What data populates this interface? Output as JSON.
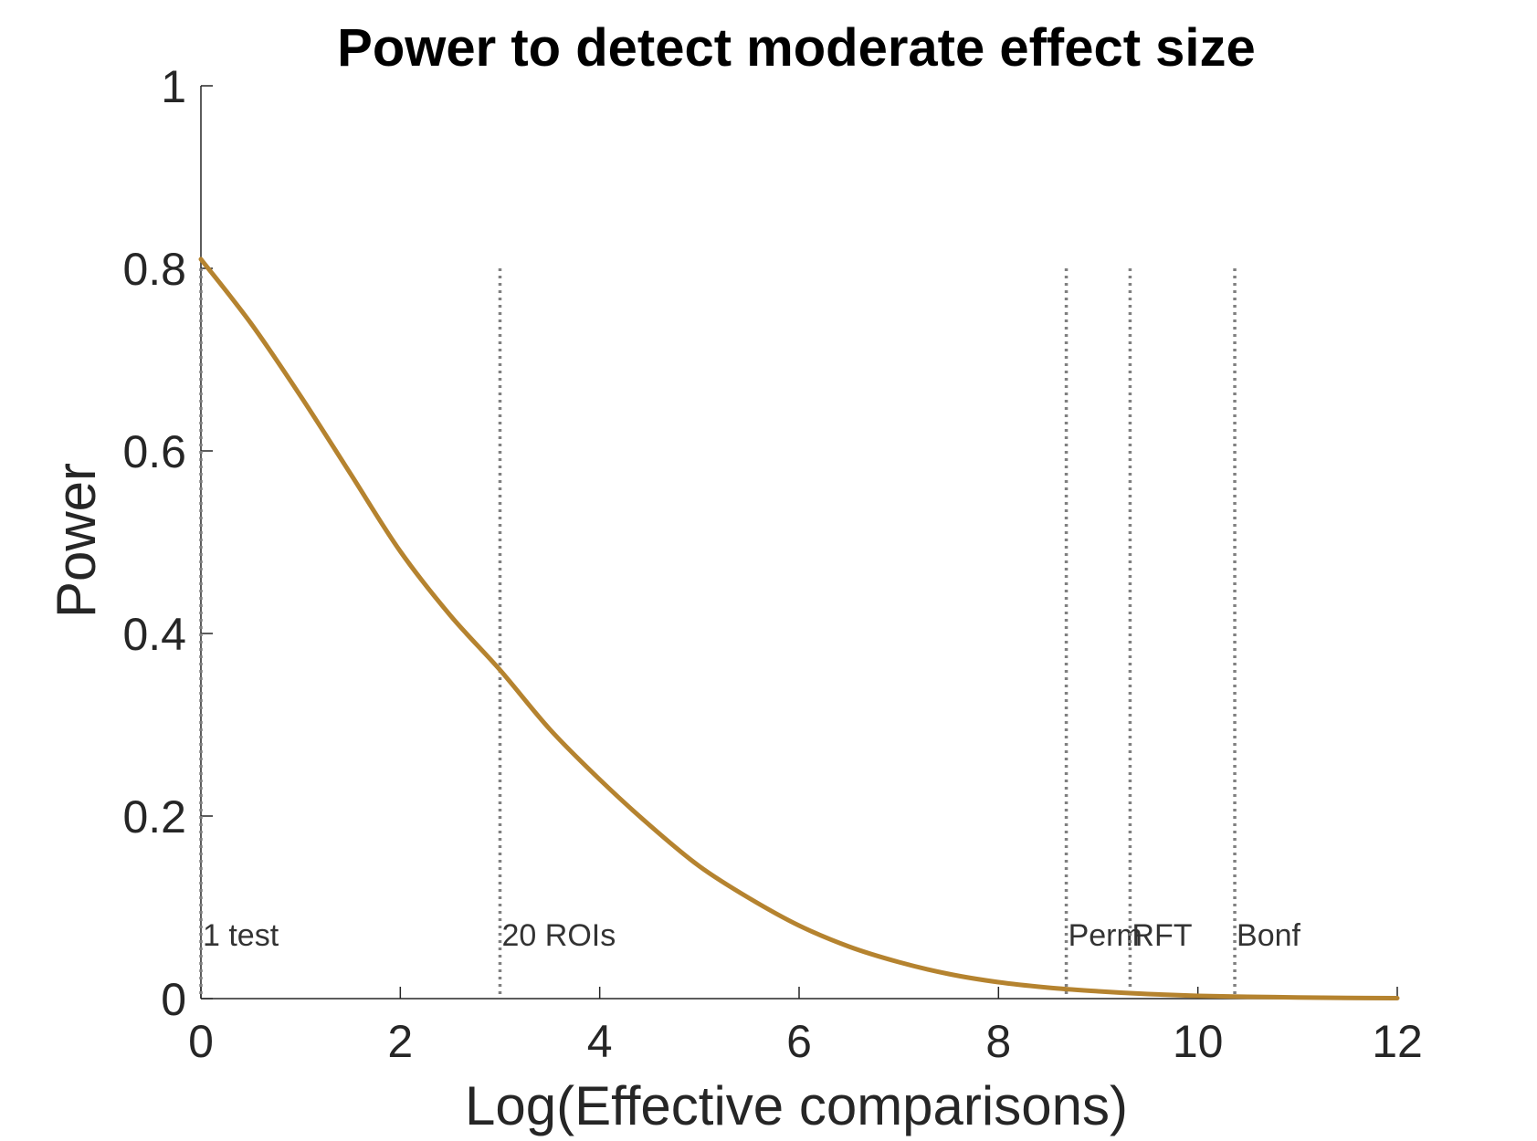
{
  "chart_data": {
    "type": "line",
    "title": "Power to detect moderate effect size",
    "xlabel": "Log(Effective comparisons)",
    "ylabel": "Power",
    "xlim": [
      0,
      12
    ],
    "ylim": [
      0,
      1
    ],
    "x_ticks": [
      {
        "value": 0,
        "label": "0"
      },
      {
        "value": 2,
        "label": "2"
      },
      {
        "value": 4,
        "label": "4"
      },
      {
        "value": 6,
        "label": "6"
      },
      {
        "value": 8,
        "label": "8"
      },
      {
        "value": 10,
        "label": "10"
      },
      {
        "value": 12,
        "label": "12"
      }
    ],
    "y_ticks": [
      {
        "value": 0,
        "label": "0"
      },
      {
        "value": 0.2,
        "label": "0.2"
      },
      {
        "value": 0.4,
        "label": "0.4"
      },
      {
        "value": 0.6,
        "label": "0.6"
      },
      {
        "value": 0.8,
        "label": "0.8"
      },
      {
        "value": 1,
        "label": "1"
      }
    ],
    "grid": false,
    "series": [
      {
        "color": "#B5832F",
        "x": [
          0,
          0.5,
          1,
          1.5,
          2,
          2.5,
          3,
          3.5,
          4,
          4.5,
          5,
          5.5,
          6,
          6.5,
          7,
          7.5,
          8,
          8.5,
          9,
          9.5,
          10,
          10.5,
          11,
          11.5,
          12
        ],
        "y": [
          0.81,
          0.74,
          0.66,
          0.575,
          0.49,
          0.42,
          0.36,
          0.295,
          0.24,
          0.19,
          0.145,
          0.11,
          0.08,
          0.057,
          0.04,
          0.027,
          0.018,
          0.012,
          0.008,
          0.005,
          0.003,
          0.002,
          0.0013,
          0.0008,
          0.0005
        ]
      }
    ],
    "reference_lines": [
      {
        "x": 0,
        "y_top": 0.8,
        "label": "1 test"
      },
      {
        "x": 3,
        "y_top": 0.8,
        "label": "20 ROIs"
      },
      {
        "x": 8.68,
        "y_top": 0.8,
        "label": "Perm"
      },
      {
        "x": 9.32,
        "y_top": 0.8,
        "label": "RFT"
      },
      {
        "x": 10.37,
        "y_top": 0.8,
        "label": "Bonf"
      }
    ],
    "annotation_y": 0.07
  }
}
